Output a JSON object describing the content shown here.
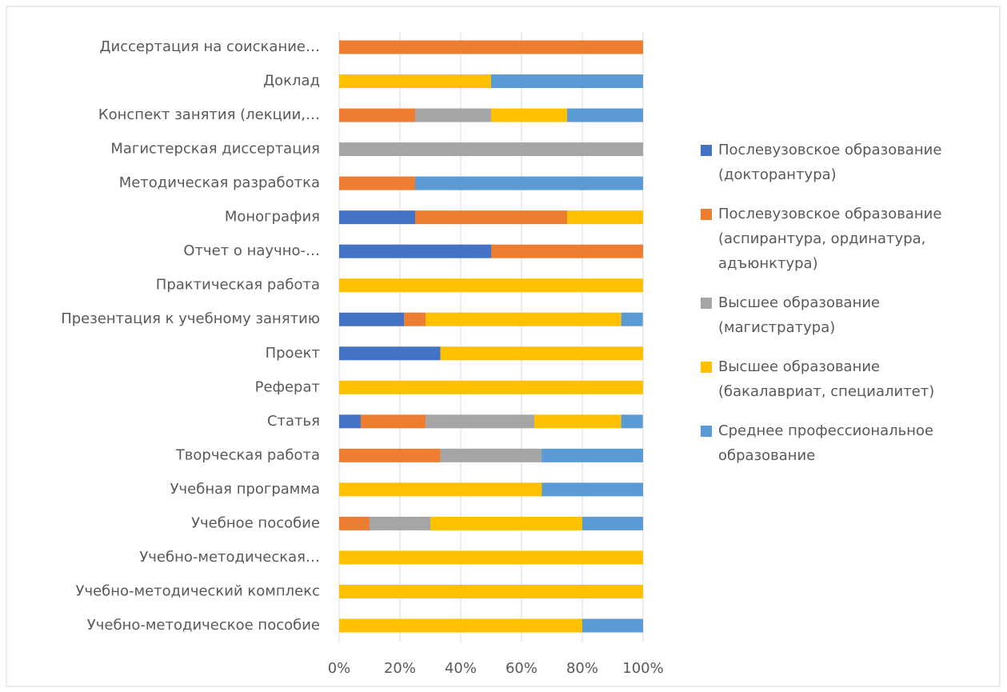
{
  "chart_data": {
    "type": "stacked_barh",
    "categories": [
      "Диссертация на соискание…",
      "Доклад",
      "Конспект занятия (лекции,…",
      "Магистерская диссертация",
      "Методическая разработка",
      "Монография",
      "Отчет о научно-…",
      "Практическая работа",
      "Презентация к учебному занятию",
      "Проект",
      "Реферат",
      "Статья",
      "Творческая работа",
      "Учебная программа",
      "Учебное пособие",
      "Учебно-методическая…",
      "Учебно-методический комплекс",
      "Учебно-методическое пособие"
    ],
    "series": [
      {
        "name": "Послевузовское образование (докторантура)",
        "color": "#4472c4",
        "values": [
          0,
          0,
          0,
          0,
          0,
          25,
          50,
          0,
          21.4,
          33.3,
          0,
          7.1,
          0,
          0,
          0,
          0,
          0,
          0
        ]
      },
      {
        "name": "Послевузовское образование (аспирантура, ординатура, адъюнктура)",
        "color": "#ed7d31",
        "values": [
          100,
          0,
          25,
          0,
          25,
          50,
          50,
          0,
          7.1,
          0,
          0,
          21.4,
          33.3,
          0,
          10,
          0,
          0,
          0
        ]
      },
      {
        "name": "Высшее образование (магистратура)",
        "color": "#a5a5a5",
        "values": [
          0,
          0,
          25,
          100,
          0,
          0,
          0,
          0,
          0,
          0,
          0,
          35.7,
          33.3,
          0,
          20,
          0,
          0,
          0
        ]
      },
      {
        "name": "Высшее образование (бакалавриат, специалитет)",
        "color": "#ffc000",
        "values": [
          0,
          50,
          25,
          0,
          0,
          25,
          0,
          100,
          64.3,
          66.7,
          100,
          28.6,
          0,
          66.7,
          50,
          100,
          100,
          80
        ]
      },
      {
        "name": "Среднее профессиональное образование",
        "color": "#5b9bd5",
        "values": [
          0,
          50,
          25,
          0,
          75,
          0,
          0,
          0,
          7.1,
          0,
          0,
          7.1,
          33.4,
          33.3,
          20,
          0,
          0,
          20
        ]
      }
    ],
    "xlim": [
      0,
      100
    ],
    "xticks": [
      {
        "value": 0,
        "label": "0%"
      },
      {
        "value": 20,
        "label": "20%"
      },
      {
        "value": 40,
        "label": "40%"
      },
      {
        "value": 60,
        "label": "60%"
      },
      {
        "value": 80,
        "label": "80%"
      },
      {
        "value": 100,
        "label": "100%"
      }
    ],
    "grid": true,
    "legend": "right"
  }
}
